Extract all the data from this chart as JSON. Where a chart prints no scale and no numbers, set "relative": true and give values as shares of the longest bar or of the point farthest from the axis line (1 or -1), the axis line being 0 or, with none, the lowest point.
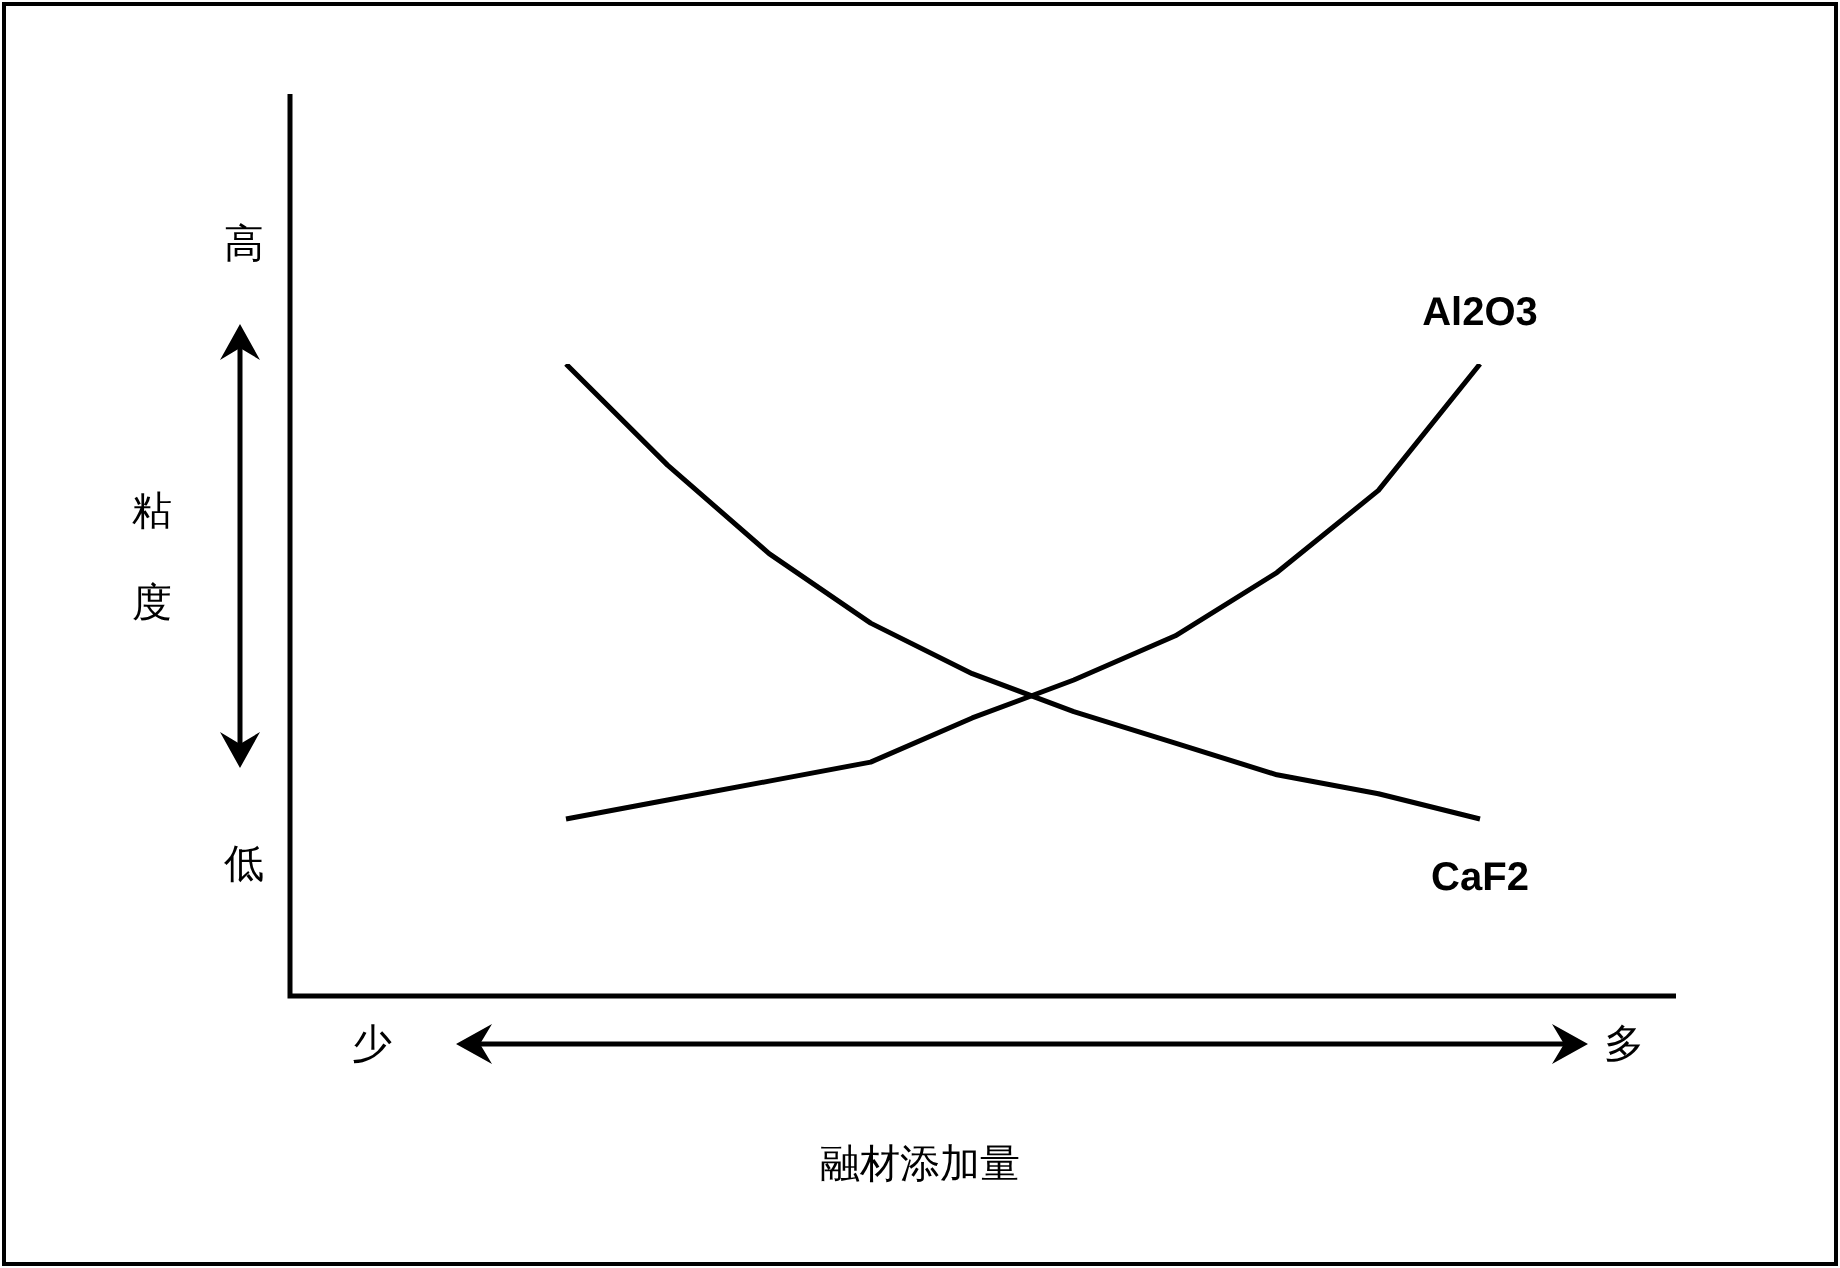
{
  "chart_data": {
    "type": "line",
    "relative": true,
    "xlabel": "融材添加量",
    "categories": [
      null,
      null,
      null,
      null,
      null,
      null,
      null,
      null,
      null,
      null
    ],
    "series": [
      {
        "name": "Al2O3",
        "color": "#000000",
        "values": [
          0.28,
          0.31,
          0.34,
          0.37,
          0.44,
          0.5,
          0.57,
          0.67,
          0.8,
          1
        ]
      },
      {
        "name": "CaF2",
        "color": "#000000",
        "values": [
          1,
          0.84,
          0.7,
          0.59,
          0.51,
          0.45,
          0.4,
          0.35,
          0.32,
          0.28
        ]
      }
    ],
    "annotations": [
      "高",
      "低",
      "少",
      "多",
      "粘度"
    ],
    "legend": false,
    "marker": "none",
    "line_style": "solid"
  }
}
